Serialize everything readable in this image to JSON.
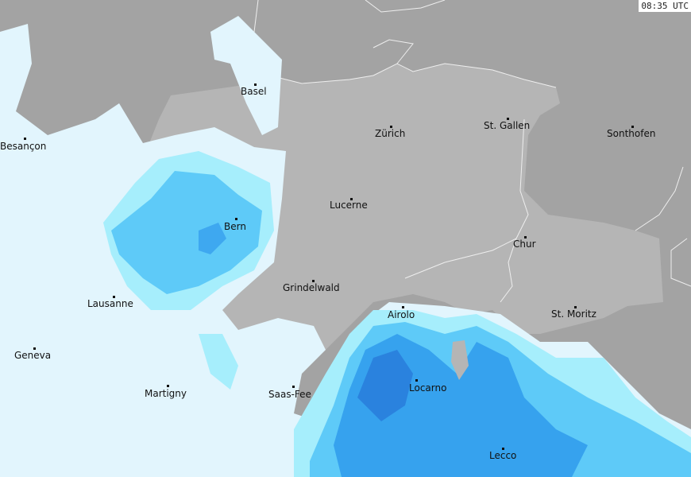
{
  "timestamp": "08:35 UTC",
  "colors": {
    "outside_land": "#a3a3a3",
    "switzerland": "#b5b5b5",
    "precip_very_light": "#e2f5fd",
    "precip_light": "#a6eefc",
    "precip_moderate": "#5ecaf8",
    "precip_heavy": "#36a2ee",
    "precip_very_heavy": "#2a82de",
    "border": "#eeeeee"
  },
  "cities": [
    {
      "name": "Basel"
    },
    {
      "name": "Zürich"
    },
    {
      "name": "St. Gallen"
    },
    {
      "name": "Sonthofen"
    },
    {
      "name": "Besançon"
    },
    {
      "name": "Lucerne"
    },
    {
      "name": "Bern"
    },
    {
      "name": "Chur"
    },
    {
      "name": "Grindelwald"
    },
    {
      "name": "Lausanne"
    },
    {
      "name": "Airolo"
    },
    {
      "name": "St. Moritz"
    },
    {
      "name": "Geneva"
    },
    {
      "name": "Martigny"
    },
    {
      "name": "Saas-Fee"
    },
    {
      "name": "Locarno"
    },
    {
      "name": "Lecco"
    }
  ]
}
